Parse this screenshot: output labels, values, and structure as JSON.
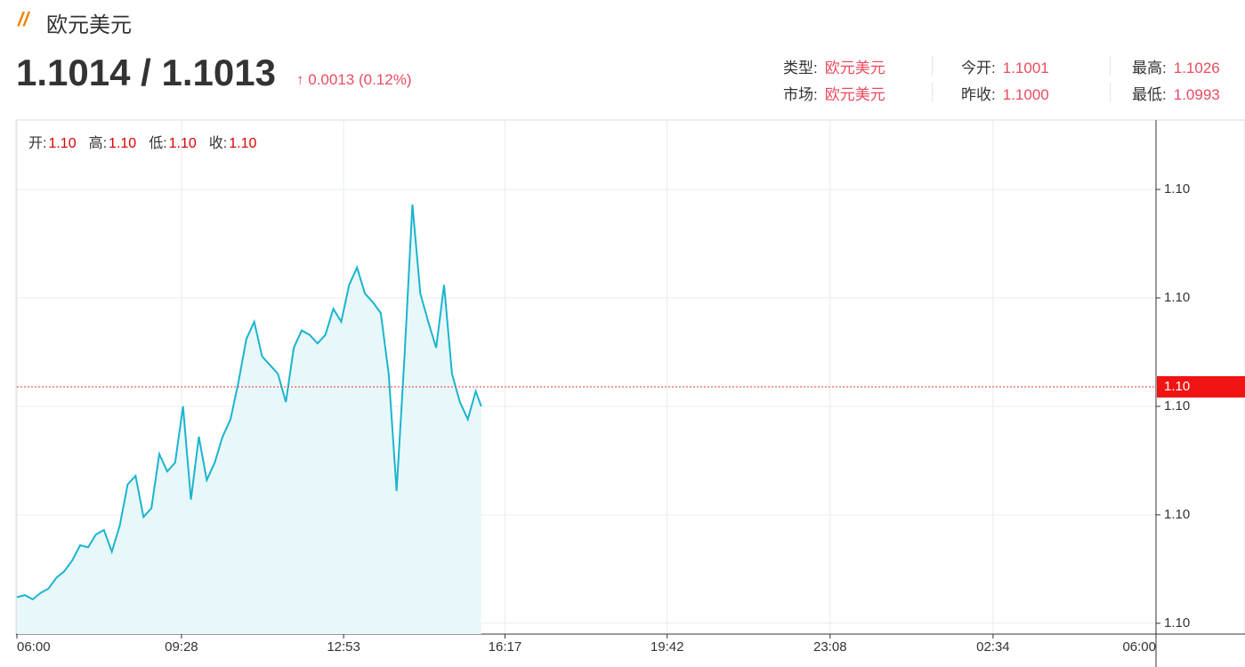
{
  "header": {
    "title": "欧元美元",
    "price": "1.1014 / 1.1013",
    "change": "0.0013 (0.12%)",
    "info": [
      [
        {
          "label": "类型:",
          "value": "欧元美元"
        },
        {
          "label": "今开:",
          "value": "1.1001"
        },
        {
          "label": "最高:",
          "value": "1.1026"
        }
      ],
      [
        {
          "label": "市场:",
          "value": "欧元美元"
        },
        {
          "label": "昨收:",
          "value": "1.1000"
        },
        {
          "label": "最低:",
          "value": "1.0993"
        }
      ]
    ]
  },
  "ohlc": [
    {
      "label": "开:",
      "value": "1.10"
    },
    {
      "label": "高:",
      "value": "1.10"
    },
    {
      "label": "低:",
      "value": "1.10"
    },
    {
      "label": "收:",
      "value": "1.10"
    }
  ],
  "chart_data": {
    "type": "line",
    "color": "#1ab5cf",
    "fill": "#e8f7f9",
    "x": [
      0,
      10,
      20,
      30,
      40,
      50,
      60,
      70,
      80,
      90,
      100,
      110,
      120,
      130,
      140,
      150,
      160,
      170,
      180,
      190,
      200,
      210,
      220,
      230,
      240,
      250,
      260,
      270,
      280,
      290,
      300,
      310,
      320,
      330,
      340,
      350,
      360,
      370,
      380,
      390,
      400,
      410,
      420,
      430,
      440,
      450,
      460,
      470,
      480,
      490,
      500,
      510,
      520,
      530,
      540,
      550,
      560,
      570,
      580,
      587
    ],
    "values": [
      1.10012,
      1.10013,
      1.10011,
      1.10014,
      1.10016,
      1.10021,
      1.10024,
      1.10029,
      1.10036,
      1.10035,
      1.10041,
      1.10043,
      1.10033,
      1.10045,
      1.10064,
      1.10068,
      1.10049,
      1.10053,
      1.10078,
      1.1007,
      1.10074,
      1.101,
      1.10057,
      1.10086,
      1.10066,
      1.10074,
      1.10086,
      1.10094,
      1.10111,
      1.10131,
      1.10139,
      1.10123,
      1.10119,
      1.10115,
      1.10102,
      1.10127,
      1.10135,
      1.10133,
      1.10129,
      1.10133,
      1.10145,
      1.10139,
      1.10156,
      1.10164,
      1.10152,
      1.10148,
      1.10143,
      1.10115,
      1.10061,
      1.10123,
      1.10193,
      1.10152,
      1.10139,
      1.10127,
      1.10156,
      1.10115,
      1.10102,
      1.10094,
      1.10107,
      1.101
    ],
    "xlim": [
      0,
      1440
    ],
    "xticks": [
      {
        "value": 0,
        "label": "06:00"
      },
      {
        "value": 208,
        "label": "09:28"
      },
      {
        "value": 413,
        "label": "12:53"
      },
      {
        "value": 617,
        "label": "16:17"
      },
      {
        "value": 822,
        "label": "19:42"
      },
      {
        "value": 1028,
        "label": "23:08"
      },
      {
        "value": 1234,
        "label": "02:34"
      },
      {
        "value": 1440,
        "label": "06:00"
      }
    ],
    "ylim": [
      1.09995,
      1.10232
    ],
    "yticks": [
      {
        "value": 1.1,
        "label": "1.10"
      },
      {
        "value": 1.1005,
        "label": "1.10"
      },
      {
        "value": 1.101,
        "label": "1.10"
      },
      {
        "value": 1.1015,
        "label": "1.10"
      },
      {
        "value": 1.102,
        "label": "1.10"
      }
    ],
    "current": {
      "value": 1.10109,
      "label": "1.10"
    },
    "grid": true
  }
}
